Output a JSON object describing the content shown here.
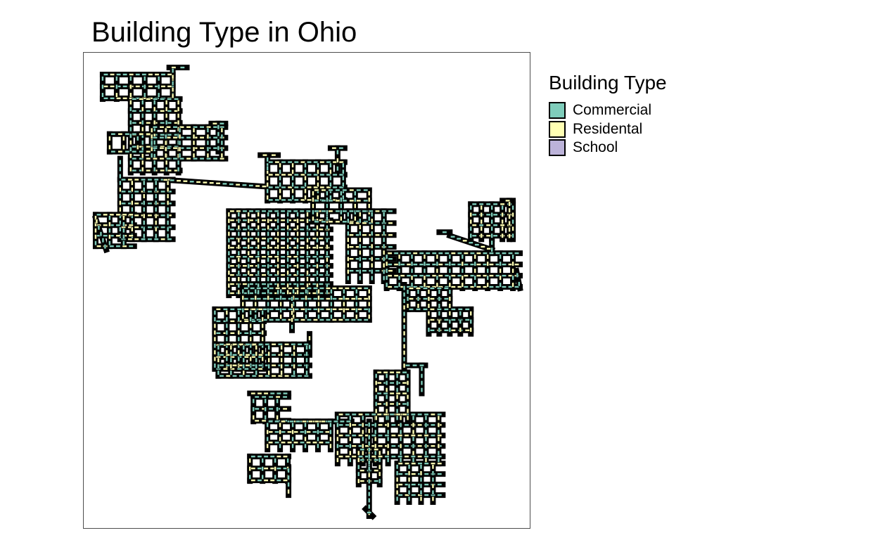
{
  "map": {
    "title": "Building Type in Ohio",
    "legend": {
      "title": "Building Type",
      "items": [
        {
          "label": "Commercial",
          "color": "#7fcdbb"
        },
        {
          "label": "Residental",
          "color": "#ffffb3"
        },
        {
          "label": "School",
          "color": "#bcb3d9"
        }
      ]
    },
    "outline_color": "#000000",
    "frame_color": "#4d4d4d"
  }
}
